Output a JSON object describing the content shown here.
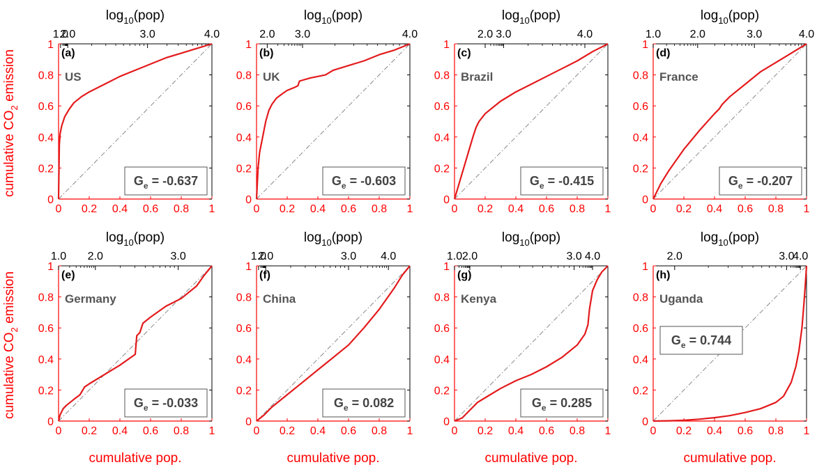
{
  "colors": {
    "axis": "#ff0000",
    "curve": "#e31a1c",
    "diagonal": "#888888",
    "text": "#555555"
  },
  "labels": {
    "top_axis_pre": "log",
    "top_axis_sub": "10",
    "top_axis_post": "(pop)",
    "y_axis_pre": "cumulative CO",
    "y_axis_sub": "2",
    "y_axis_post": " emission",
    "x_axis": "cumulative pop.",
    "gini_pre": "G",
    "gini_sub": "e"
  },
  "chart_data": [
    {
      "type": "line",
      "panel": "(a)",
      "country": "US",
      "gini": "= -0.637",
      "xlim": [
        0,
        1
      ],
      "ylim": [
        0,
        1
      ],
      "x_ticks": [
        "0",
        "0.2",
        "0.4",
        "0.6",
        "0.8",
        "1"
      ],
      "y_ticks": [
        "0",
        "0.2",
        "0.4",
        "0.6",
        "0.8",
        "1"
      ],
      "top_ticks": [
        {
          "label": "1.0",
          "pos": 0.013
        },
        {
          "label": "2.0",
          "pos": 0.06
        },
        {
          "label": "3.0",
          "pos": 0.58
        },
        {
          "label": "4.0",
          "pos": 1.0
        }
      ],
      "series": [
        {
          "x": [
            0,
            0.005,
            0.01,
            0.02,
            0.04,
            0.07,
            0.1,
            0.15,
            0.2,
            0.3,
            0.4,
            0.5,
            0.6,
            0.7,
            0.8,
            0.9,
            1.0
          ],
          "y": [
            0,
            0.35,
            0.42,
            0.47,
            0.53,
            0.58,
            0.62,
            0.66,
            0.69,
            0.74,
            0.79,
            0.83,
            0.87,
            0.91,
            0.94,
            0.97,
            1.0
          ]
        }
      ],
      "gini_box": "bottom-right",
      "grid": false
    },
    {
      "type": "line",
      "panel": "(b)",
      "country": "UK",
      "gini": "= -0.603",
      "xlim": [
        0,
        1
      ],
      "ylim": [
        0,
        1
      ],
      "x_ticks": [
        "0",
        "0.2",
        "0.4",
        "0.6",
        "0.8",
        "1"
      ],
      "y_ticks": [
        "0",
        "0.2",
        "0.4",
        "0.6",
        "0.8",
        "1"
      ],
      "top_ticks": [
        {
          "label": "2.0",
          "pos": 0.07
        },
        {
          "label": "3.0",
          "pos": 0.3
        },
        {
          "label": "4.0",
          "pos": 1.0
        }
      ],
      "series": [
        {
          "x": [
            0,
            0.01,
            0.02,
            0.04,
            0.06,
            0.08,
            0.1,
            0.13,
            0.17,
            0.2,
            0.25,
            0.27,
            0.28,
            0.35,
            0.45,
            0.5,
            0.6,
            0.7,
            0.8,
            0.9,
            1.0
          ],
          "y": [
            0,
            0.2,
            0.3,
            0.4,
            0.5,
            0.57,
            0.61,
            0.65,
            0.68,
            0.7,
            0.72,
            0.73,
            0.76,
            0.78,
            0.8,
            0.83,
            0.86,
            0.89,
            0.93,
            0.96,
            1.0
          ]
        }
      ],
      "gini_box": "bottom-right",
      "grid": false
    },
    {
      "type": "line",
      "panel": "(c)",
      "country": "Brazil",
      "gini": "= -0.415",
      "xlim": [
        0,
        1
      ],
      "ylim": [
        0,
        1
      ],
      "x_ticks": [
        "0",
        "0.2",
        "0.4",
        "0.6",
        "0.8",
        "1"
      ],
      "y_ticks": [
        "0",
        "0.2",
        "0.4",
        "0.6",
        "0.8",
        "1"
      ],
      "top_ticks": [
        {
          "label": "2.0",
          "pos": 0.2
        },
        {
          "label": "3.0",
          "pos": 0.32
        },
        {
          "label": "4.0",
          "pos": 0.85
        }
      ],
      "series": [
        {
          "x": [
            0,
            0.03,
            0.06,
            0.09,
            0.12,
            0.14,
            0.16,
            0.2,
            0.25,
            0.3,
            0.4,
            0.5,
            0.6,
            0.7,
            0.8,
            0.9,
            1.0
          ],
          "y": [
            0,
            0.1,
            0.2,
            0.3,
            0.4,
            0.46,
            0.5,
            0.55,
            0.59,
            0.63,
            0.69,
            0.74,
            0.79,
            0.84,
            0.89,
            0.95,
            1.0
          ]
        }
      ],
      "gini_box": "bottom-right",
      "grid": false
    },
    {
      "type": "line",
      "panel": "(d)",
      "country": "France",
      "gini": "= -0.207",
      "xlim": [
        0,
        1
      ],
      "ylim": [
        0,
        1
      ],
      "x_ticks": [
        "0",
        "0.2",
        "0.4",
        "0.6",
        "0.8",
        "1"
      ],
      "y_ticks": [
        "0",
        "0.2",
        "0.4",
        "0.6",
        "0.8",
        "1"
      ],
      "top_ticks": [
        {
          "label": "1.0",
          "pos": 0.0
        },
        {
          "label": "2.0",
          "pos": 0.29
        },
        {
          "label": "3.0",
          "pos": 0.66
        },
        {
          "label": "4.0",
          "pos": 1.0
        }
      ],
      "series": [
        {
          "x": [
            0,
            0.05,
            0.1,
            0.2,
            0.3,
            0.4,
            0.43,
            0.45,
            0.5,
            0.6,
            0.7,
            0.8,
            0.9,
            1.0
          ],
          "y": [
            0,
            0.1,
            0.18,
            0.32,
            0.44,
            0.55,
            0.58,
            0.61,
            0.66,
            0.74,
            0.82,
            0.88,
            0.94,
            1.0
          ]
        }
      ],
      "gini_box": "bottom-right",
      "grid": false
    },
    {
      "type": "line",
      "panel": "(e)",
      "country": "Germany",
      "gini": "= -0.033",
      "xlim": [
        0,
        1
      ],
      "ylim": [
        0,
        1
      ],
      "x_ticks": [
        "0",
        "0.2",
        "0.4",
        "0.6",
        "0.8",
        "1"
      ],
      "y_ticks": [
        "0",
        "0.2",
        "0.4",
        "0.6",
        "0.8",
        "1"
      ],
      "top_ticks": [
        {
          "label": "1.0",
          "pos": 0.0
        },
        {
          "label": "2.0",
          "pos": 0.24
        },
        {
          "label": "3.0",
          "pos": 0.78
        }
      ],
      "series": [
        {
          "x": [
            0,
            0.01,
            0.03,
            0.05,
            0.1,
            0.14,
            0.17,
            0.2,
            0.3,
            0.4,
            0.5,
            0.51,
            0.53,
            0.55,
            0.6,
            0.7,
            0.8,
            0.9,
            0.95,
            1.0
          ],
          "y": [
            0,
            0.04,
            0.08,
            0.1,
            0.14,
            0.17,
            0.22,
            0.24,
            0.3,
            0.36,
            0.43,
            0.55,
            0.57,
            0.63,
            0.67,
            0.74,
            0.79,
            0.87,
            0.94,
            1.0
          ]
        }
      ],
      "gini_box": "bottom-right",
      "grid": false
    },
    {
      "type": "line",
      "panel": "(f)",
      "country": "China",
      "gini": "= 0.082",
      "xlim": [
        0,
        1
      ],
      "ylim": [
        0,
        1
      ],
      "x_ticks": [
        "0",
        "0.2",
        "0.4",
        "0.6",
        "0.8",
        "1"
      ],
      "y_ticks": [
        "0",
        "0.2",
        "0.4",
        "0.6",
        "0.8",
        "1"
      ],
      "top_ticks": [
        {
          "label": "1.0",
          "pos": 0.013
        },
        {
          "label": "2.0",
          "pos": 0.06
        },
        {
          "label": "3.0",
          "pos": 0.6
        },
        {
          "label": "4.0",
          "pos": 0.86
        }
      ],
      "series": [
        {
          "x": [
            0,
            0.05,
            0.1,
            0.2,
            0.3,
            0.4,
            0.5,
            0.6,
            0.7,
            0.8,
            0.9,
            0.95,
            1.0
          ],
          "y": [
            0,
            0.04,
            0.09,
            0.17,
            0.25,
            0.33,
            0.41,
            0.49,
            0.6,
            0.72,
            0.86,
            0.94,
            1.0
          ]
        }
      ],
      "gini_box": "bottom-right",
      "grid": false
    },
    {
      "type": "line",
      "panel": "(g)",
      "country": "Kenya",
      "gini": "= 0.285",
      "xlim": [
        0,
        1
      ],
      "ylim": [
        0,
        1
      ],
      "x_ticks": [
        "0",
        "0.2",
        "0.4",
        "0.6",
        "0.8",
        "1"
      ],
      "y_ticks": [
        "0",
        "0.2",
        "0.4",
        "0.6",
        "0.8",
        "1"
      ],
      "top_ticks": [
        {
          "label": "1.0",
          "pos": 0.0
        },
        {
          "label": "2.0",
          "pos": 0.1
        },
        {
          "label": "3.0",
          "pos": 0.78
        },
        {
          "label": "4.0",
          "pos": 0.9
        }
      ],
      "series": [
        {
          "x": [
            0,
            0.05,
            0.1,
            0.15,
            0.2,
            0.3,
            0.4,
            0.5,
            0.6,
            0.7,
            0.8,
            0.85,
            0.87,
            0.88,
            0.9,
            0.93,
            0.96,
            1.0
          ],
          "y": [
            0,
            0.02,
            0.07,
            0.12,
            0.15,
            0.21,
            0.26,
            0.3,
            0.35,
            0.41,
            0.49,
            0.56,
            0.62,
            0.72,
            0.84,
            0.91,
            0.96,
            1.0
          ]
        }
      ],
      "gini_box": "bottom-right",
      "grid": false
    },
    {
      "type": "line",
      "panel": "(h)",
      "country": "Uganda",
      "gini": "= 0.744",
      "xlim": [
        0,
        1
      ],
      "ylim": [
        0,
        1
      ],
      "x_ticks": [
        "0",
        "0.2",
        "0.4",
        "0.6",
        "0.8",
        "1"
      ],
      "y_ticks": [
        "0",
        "0.2",
        "0.4",
        "0.6",
        "0.8",
        "1"
      ],
      "top_ticks": [
        {
          "label": "2.0",
          "pos": 0.14
        },
        {
          "label": "3.0",
          "pos": 0.87
        },
        {
          "label": "4.0",
          "pos": 0.96
        }
      ],
      "series": [
        {
          "x": [
            0,
            0.1,
            0.2,
            0.3,
            0.4,
            0.5,
            0.6,
            0.7,
            0.8,
            0.85,
            0.9,
            0.93,
            0.95,
            0.97,
            0.98,
            0.99,
            1.0
          ],
          "y": [
            0,
            0.002,
            0.005,
            0.012,
            0.022,
            0.035,
            0.055,
            0.08,
            0.12,
            0.16,
            0.25,
            0.35,
            0.45,
            0.6,
            0.72,
            0.85,
            1.0
          ]
        }
      ],
      "gini_box": "middle-left",
      "grid": false
    }
  ]
}
